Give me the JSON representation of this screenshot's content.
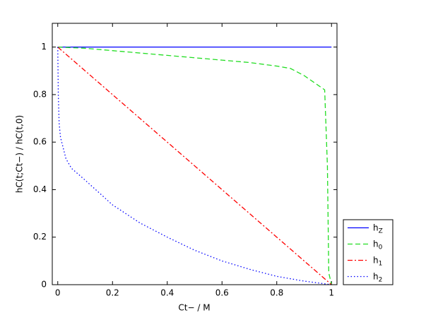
{
  "chart_data": {
    "type": "line",
    "xlabel": "Ct− / M",
    "ylabel": "hC(t;Ct−) / hC(t,0)",
    "xlim": [
      -0.02,
      1.02
    ],
    "ylim": [
      0,
      1.1
    ],
    "xticks": [
      0,
      0.2,
      0.4,
      0.6,
      0.8,
      1
    ],
    "yticks": [
      0,
      0.2,
      0.4,
      0.6,
      0.8,
      1
    ],
    "legend": "outside-right-bottom",
    "series": [
      {
        "name": "hZ",
        "color": "#0000ff",
        "linestyle": "solid",
        "x": [
          0,
          1
        ],
        "values": [
          1,
          1
        ]
      },
      {
        "name": "h0",
        "color": "#22dd22",
        "linestyle": "dashed",
        "x": [
          0,
          0.1,
          0.2,
          0.3,
          0.4,
          0.5,
          0.6,
          0.7,
          0.8,
          0.85,
          0.9,
          0.95,
          0.975,
          0.985,
          0.99,
          1
        ],
        "values": [
          1,
          0.995,
          0.985,
          0.975,
          0.965,
          0.955,
          0.945,
          0.935,
          0.92,
          0.91,
          0.88,
          0.84,
          0.82,
          0.5,
          0.05,
          0
        ]
      },
      {
        "name": "h1",
        "color": "#ff0000",
        "linestyle": "dashdot",
        "x": [
          0,
          0.5,
          1
        ],
        "values": [
          1,
          0.5,
          0
        ]
      },
      {
        "name": "h2",
        "color": "#0000ff",
        "linestyle": "dotted",
        "x": [
          0,
          0.002,
          0.005,
          0.01,
          0.03,
          0.05,
          0.1,
          0.2,
          0.3,
          0.4,
          0.5,
          0.6,
          0.7,
          0.8,
          0.9,
          1
        ],
        "values": [
          1,
          0.8,
          0.68,
          0.62,
          0.53,
          0.49,
          0.44,
          0.336,
          0.26,
          0.2,
          0.145,
          0.1,
          0.065,
          0.035,
          0.015,
          0
        ]
      }
    ]
  }
}
